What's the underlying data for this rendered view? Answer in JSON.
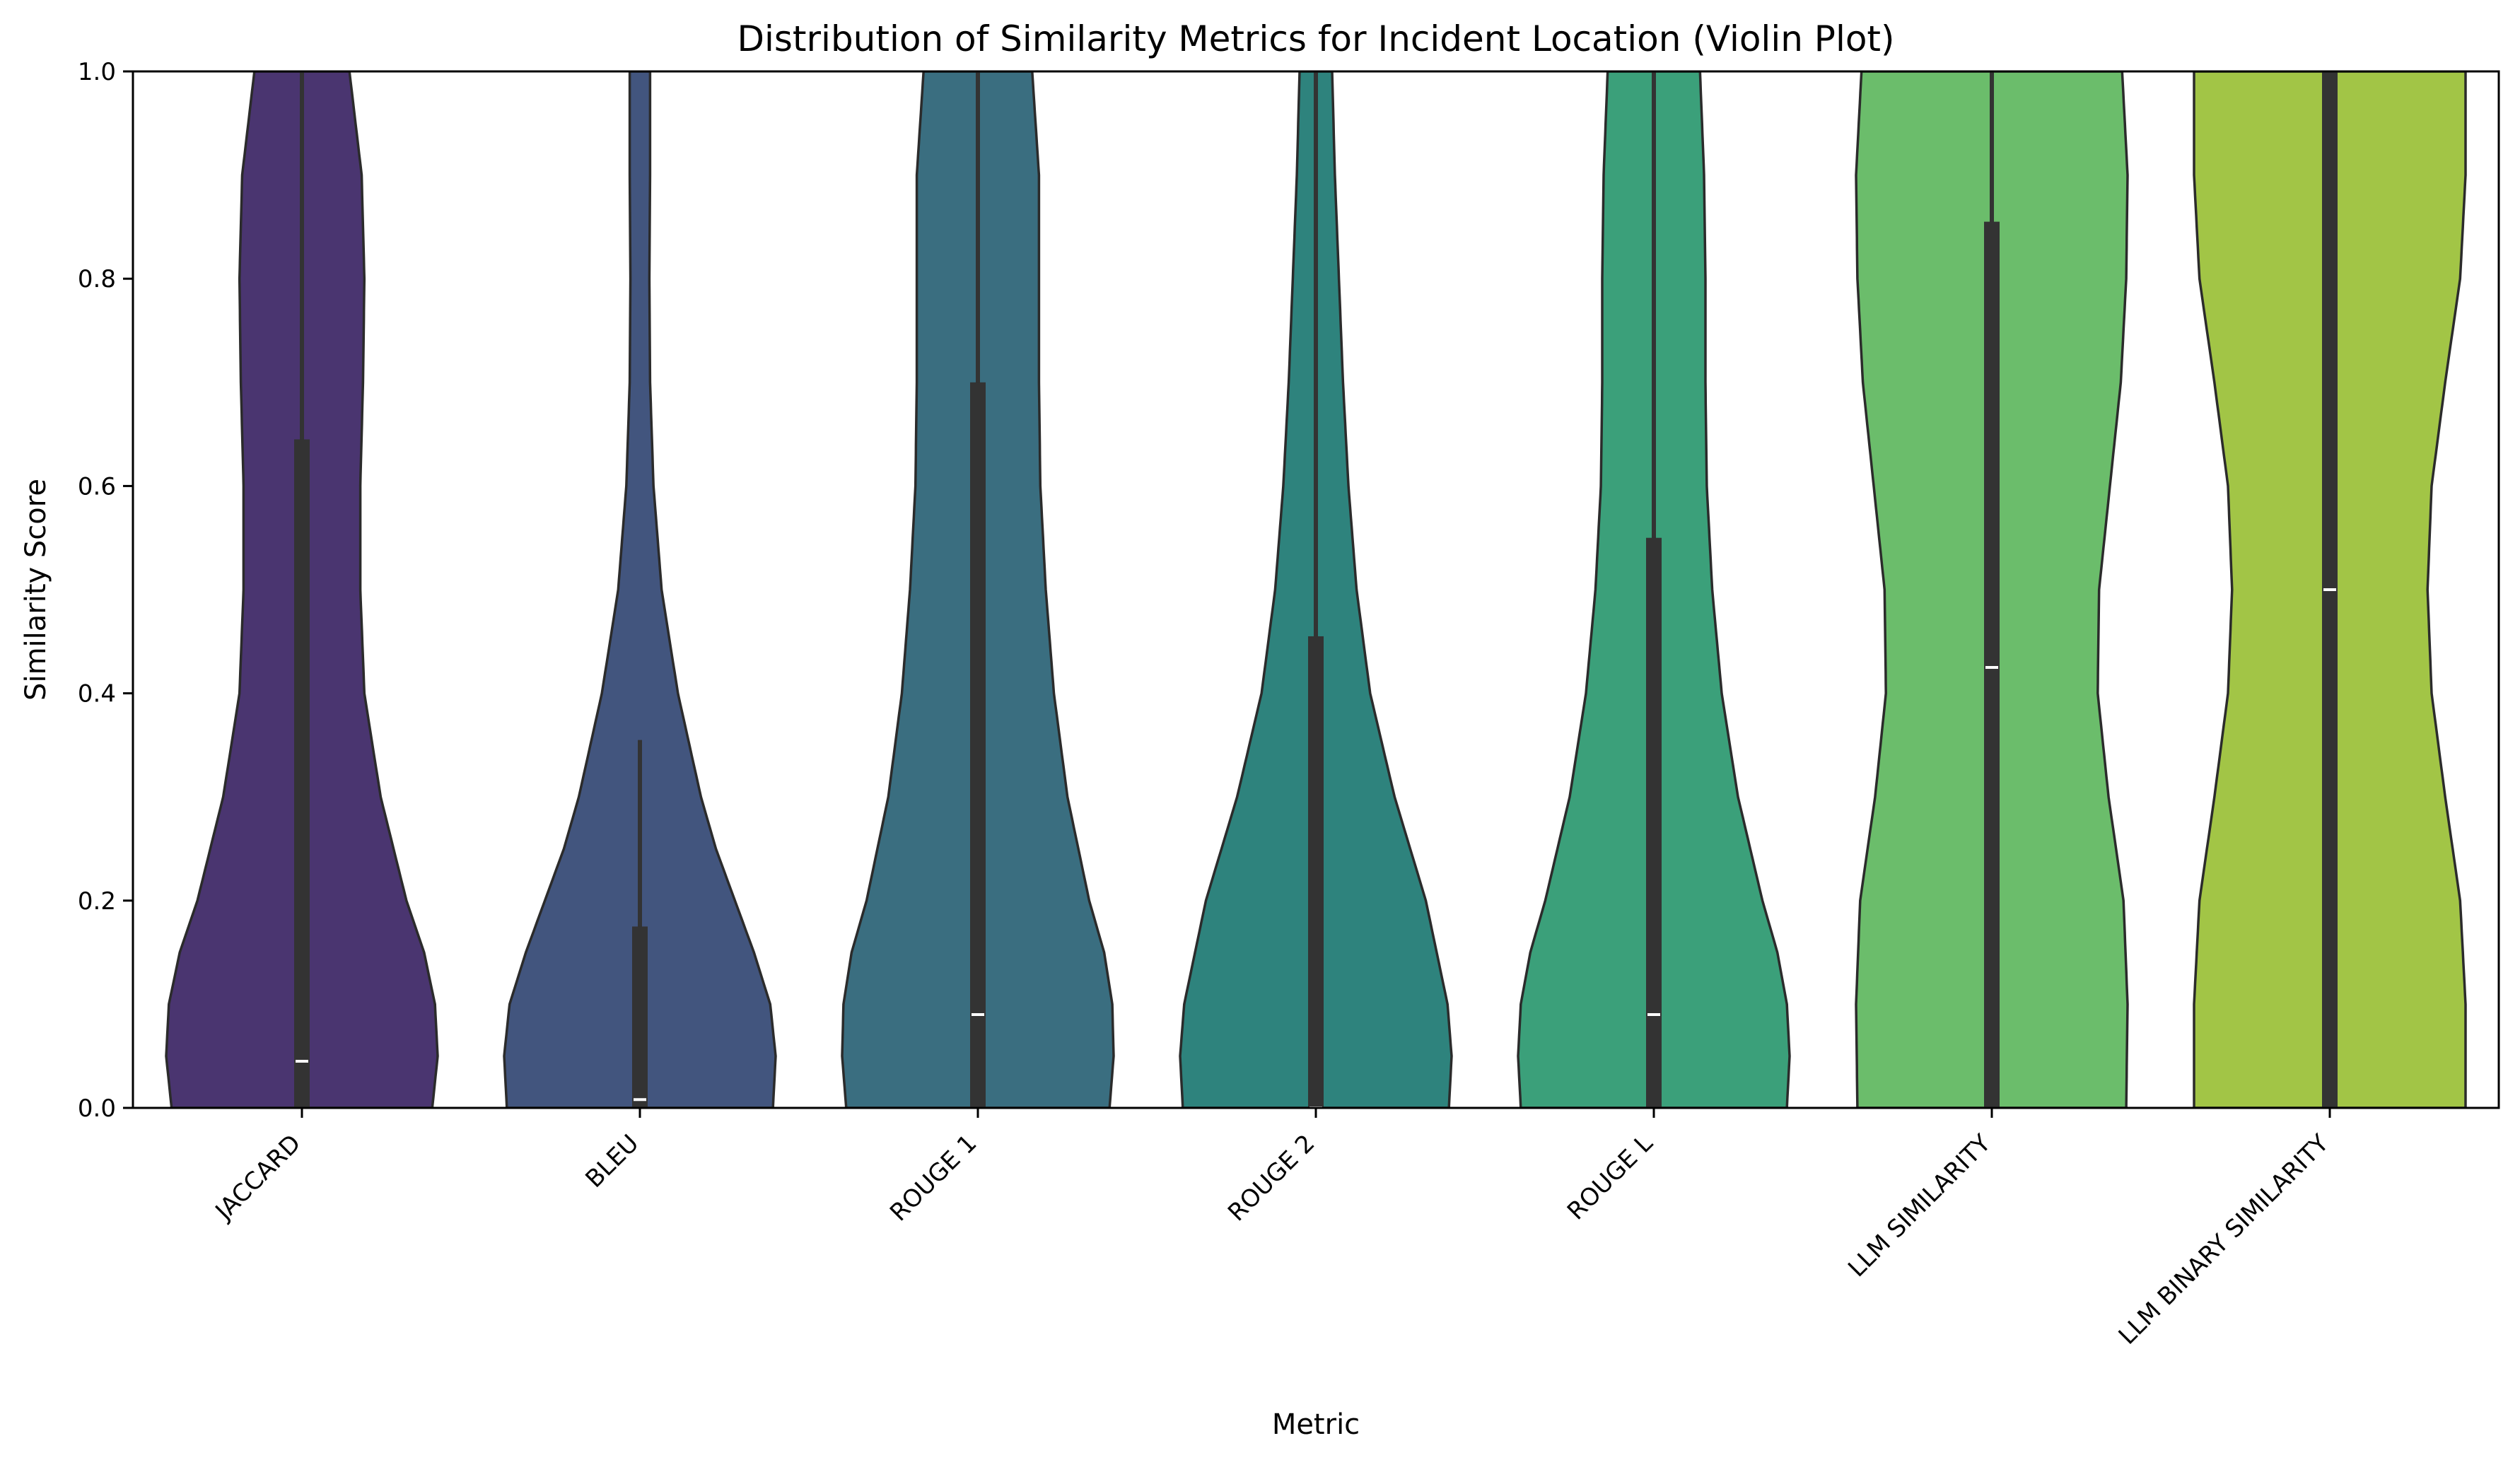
{
  "chart_data": {
    "type": "violin",
    "title": "Distribution of Similarity Metrics for Incident Location (Violin Plot)",
    "xlabel": "Metric",
    "ylabel": "Similarity Score",
    "ylim": [
      0,
      1
    ],
    "yticks": [
      "0.0",
      "0.2",
      "0.4",
      "0.6",
      "0.8",
      "1.0"
    ],
    "grid": false,
    "legend": "none",
    "categories": [
      "JACCARD",
      "BLEU",
      "ROUGE 1",
      "ROUGE 2",
      "ROUGE L",
      "LLM SIMILARITY",
      "LLM BINARY SIMILARITY"
    ],
    "colors": [
      "#4a3570",
      "#42557e",
      "#3a6e80",
      "#2e837d",
      "#3ba07a",
      "#6bbd6b",
      "#a2c546"
    ],
    "summary": [
      {
        "median": 0.045,
        "q1": 0.0,
        "q3": 0.645,
        "whisker_low": 0.0,
        "whisker_high": 1.0
      },
      {
        "median": 0.008,
        "q1": 0.0,
        "q3": 0.175,
        "whisker_low": 0.0,
        "whisker_high": 0.355
      },
      {
        "median": 0.09,
        "q1": 0.0,
        "q3": 0.7,
        "whisker_low": 0.0,
        "whisker_high": 1.0
      },
      {
        "median": 0.0,
        "q1": 0.0,
        "q3": 0.455,
        "whisker_low": 0.0,
        "whisker_high": 1.0
      },
      {
        "median": 0.09,
        "q1": 0.0,
        "q3": 0.55,
        "whisker_low": 0.0,
        "whisker_high": 1.0
      },
      {
        "median": 0.425,
        "q1": 0.0,
        "q3": 0.855,
        "whisker_low": 0.0,
        "whisker_high": 1.0
      },
      {
        "median": 0.5,
        "q1": 0.0,
        "q3": 1.0,
        "whisker_low": 0.0,
        "whisker_high": 1.0
      }
    ],
    "density_profiles": [
      [
        [
          0.0,
          0.96
        ],
        [
          0.05,
          1.0
        ],
        [
          0.1,
          0.98
        ],
        [
          0.15,
          0.9
        ],
        [
          0.2,
          0.77
        ],
        [
          0.3,
          0.58
        ],
        [
          0.4,
          0.46
        ],
        [
          0.5,
          0.43
        ],
        [
          0.6,
          0.43
        ],
        [
          0.7,
          0.45
        ],
        [
          0.8,
          0.46
        ],
        [
          0.9,
          0.44
        ],
        [
          1.0,
          0.35
        ]
      ],
      [
        [
          0.0,
          0.98
        ],
        [
          0.05,
          1.0
        ],
        [
          0.1,
          0.96
        ],
        [
          0.15,
          0.84
        ],
        [
          0.2,
          0.7
        ],
        [
          0.25,
          0.56
        ],
        [
          0.3,
          0.45
        ],
        [
          0.4,
          0.28
        ],
        [
          0.5,
          0.16
        ],
        [
          0.6,
          0.1
        ],
        [
          0.7,
          0.075
        ],
        [
          0.8,
          0.07
        ],
        [
          0.9,
          0.075
        ],
        [
          1.0,
          0.075
        ]
      ],
      [
        [
          0.0,
          0.97
        ],
        [
          0.05,
          1.0
        ],
        [
          0.1,
          0.99
        ],
        [
          0.15,
          0.93
        ],
        [
          0.2,
          0.82
        ],
        [
          0.3,
          0.66
        ],
        [
          0.4,
          0.56
        ],
        [
          0.5,
          0.5
        ],
        [
          0.6,
          0.46
        ],
        [
          0.7,
          0.45
        ],
        [
          0.8,
          0.45
        ],
        [
          0.9,
          0.45
        ],
        [
          1.0,
          0.4
        ]
      ],
      [
        [
          0.0,
          0.98
        ],
        [
          0.05,
          1.0
        ],
        [
          0.1,
          0.97
        ],
        [
          0.2,
          0.81
        ],
        [
          0.3,
          0.58
        ],
        [
          0.4,
          0.4
        ],
        [
          0.5,
          0.3
        ],
        [
          0.6,
          0.24
        ],
        [
          0.7,
          0.2
        ],
        [
          0.8,
          0.17
        ],
        [
          0.9,
          0.14
        ],
        [
          1.0,
          0.12
        ]
      ],
      [
        [
          0.0,
          0.98
        ],
        [
          0.05,
          1.0
        ],
        [
          0.1,
          0.98
        ],
        [
          0.15,
          0.91
        ],
        [
          0.2,
          0.8
        ],
        [
          0.3,
          0.62
        ],
        [
          0.4,
          0.5
        ],
        [
          0.5,
          0.43
        ],
        [
          0.6,
          0.39
        ],
        [
          0.7,
          0.38
        ],
        [
          0.8,
          0.38
        ],
        [
          0.9,
          0.37
        ],
        [
          1.0,
          0.34
        ]
      ],
      [
        [
          0.0,
          0.99
        ],
        [
          0.1,
          1.0
        ],
        [
          0.2,
          0.97
        ],
        [
          0.3,
          0.86
        ],
        [
          0.4,
          0.78
        ],
        [
          0.5,
          0.79
        ],
        [
          0.6,
          0.87
        ],
        [
          0.7,
          0.95
        ],
        [
          0.8,
          0.99
        ],
        [
          0.9,
          1.0
        ],
        [
          1.0,
          0.96
        ]
      ],
      [
        [
          0.0,
          1.0
        ],
        [
          0.1,
          1.0
        ],
        [
          0.2,
          0.96
        ],
        [
          0.3,
          0.85
        ],
        [
          0.4,
          0.75
        ],
        [
          0.5,
          0.72
        ],
        [
          0.6,
          0.75
        ],
        [
          0.7,
          0.85
        ],
        [
          0.8,
          0.96
        ],
        [
          0.9,
          1.0
        ],
        [
          1.0,
          1.0
        ]
      ]
    ]
  }
}
